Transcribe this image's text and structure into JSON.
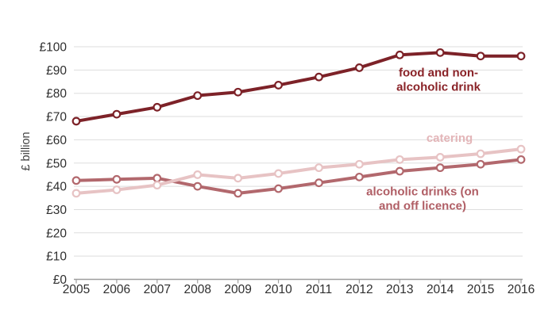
{
  "chart_data": {
    "type": "line",
    "title": "",
    "xlabel": "",
    "ylabel": "£ billion",
    "ylim": [
      0,
      100
    ],
    "ytick_step": 10,
    "ytick_prefix": "£",
    "grid": "horizontal-only",
    "legend": "inline-labels-next-to-lines",
    "x": [
      2005,
      2006,
      2007,
      2008,
      2009,
      2010,
      2011,
      2012,
      2013,
      2014,
      2015,
      2016
    ],
    "series": [
      {
        "name": "food and non-alcoholic drink",
        "annotation": "food and non-\nalcoholic drink",
        "color": "#7D2228",
        "label_color": "#8A2328",
        "values": [
          68,
          71,
          74,
          79,
          80.5,
          83.5,
          87,
          91,
          96.5,
          97.5,
          96,
          96
        ],
        "label_pos": {
          "x": 552,
          "y": 102
        }
      },
      {
        "name": "alcoholic drinks (on and off licence)",
        "annotation": "alcoholic drinks (on\nand off licence)",
        "color": "#B2686D",
        "label_color": "#B05E65",
        "values": [
          42.5,
          43,
          43.5,
          40,
          37,
          39,
          41.5,
          44,
          46.5,
          48,
          49.5,
          51.5
        ],
        "label_pos": {
          "x": 532,
          "y": 252
        }
      },
      {
        "name": "catering",
        "annotation": "catering",
        "color": "#E7C3C4",
        "label_color": "#E3B5B8",
        "values": [
          37,
          38.5,
          40.5,
          45,
          43.5,
          45.5,
          48,
          49.5,
          51.5,
          52.5,
          54,
          56
        ],
        "label_pos": {
          "x": 566,
          "y": 175
        }
      }
    ],
    "style": {
      "marker": "open-circle-white-fill",
      "marker_radius": 4.3,
      "marker_stroke_width": 2.2,
      "line_width": 4,
      "gridline_color": "#DEDEDE",
      "axis_color": "#9E9E9E",
      "tick_label_color": "#2E2E2E",
      "axis_label_color": "#3F3F3F"
    },
    "layout": {
      "plot_left": 96,
      "plot_right": 656,
      "plot_top": 59,
      "plot_bottom": 352.5,
      "grid_left": 93,
      "grid_right": 658,
      "ytick_label_right": 84,
      "xtick_label_baseline": 370,
      "ylabel_x": 37,
      "ylabel_y": 191,
      "tick_len": 5,
      "tick_font_size": 15.5,
      "ylabel_font_size": 14.5
    }
  }
}
